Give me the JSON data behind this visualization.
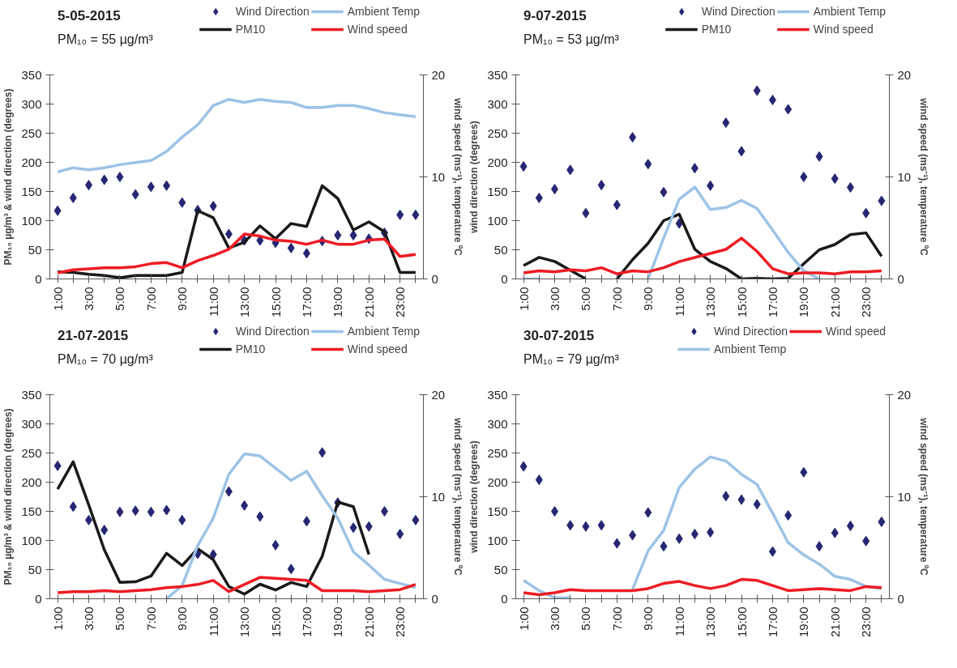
{
  "chart_data": [
    {
      "type": "line",
      "title": "5-05-2015",
      "subtitle": "PM₁₀ = 55 µg/m³",
      "ylabel": "PM₁₀ µg/m³ & wind direction\n(degrees)",
      "y2label": "wind speed (ms⁻¹),\ntemperature ºC",
      "categories": [
        "1:00",
        null,
        "3:00",
        null,
        "5:00",
        null,
        "7:00",
        null,
        "9:00",
        null,
        "11:00",
        null,
        "13:00",
        null,
        "15:00",
        null,
        "17:00",
        null,
        "19:00",
        null,
        "21:00",
        null,
        "23:00",
        null
      ],
      "ylim": [
        0,
        350
      ],
      "yticks": [
        0,
        50,
        100,
        150,
        200,
        250,
        300,
        350
      ],
      "y2lim": [
        0,
        20
      ],
      "y2ticks": [
        0,
        10,
        20
      ],
      "legend": "top",
      "grid": false,
      "series": [
        {
          "name": "Wind Direction",
          "type": "scatter",
          "marker": "diamond",
          "color": "#262673",
          "values": [
            117,
            139,
            161,
            170,
            175,
            145,
            158,
            160,
            131,
            118,
            125,
            77,
            66,
            66,
            62,
            53,
            44,
            65,
            75,
            75,
            69,
            79,
            110,
            110
          ]
        },
        {
          "name": "PM10",
          "color": "#1a1a1a",
          "values": [
            12,
            11,
            8,
            6,
            2,
            6,
            6,
            6,
            11,
            117,
            105,
            53,
            63,
            91,
            69,
            95,
            90,
            160,
            138,
            84,
            98,
            81,
            11,
            11
          ]
        },
        {
          "name": "Ambient Temp",
          "type": "line",
          "axis": "y2",
          "color": "#9dc3e6",
          "values": [
            10.5,
            10.9,
            10.7,
            10.9,
            11.2,
            11.4,
            11.6,
            12.5,
            13.9,
            15.1,
            17.0,
            17.6,
            17.3,
            17.6,
            17.4,
            17.3,
            16.8,
            16.8,
            17.0,
            17.0,
            16.7,
            16.3,
            16.1,
            15.9
          ]
        },
        {
          "name": "Wind speed",
          "type": "line",
          "axis": "y2",
          "color": "#ed1c24",
          "values": [
            0.6,
            0.9,
            1.0,
            1.1,
            1.1,
            1.2,
            1.5,
            1.6,
            1.1,
            1.8,
            2.3,
            2.9,
            4.4,
            4.2,
            3.8,
            3.7,
            3.4,
            3.8,
            3.4,
            3.4,
            3.8,
            3.9,
            2.2,
            2.4
          ]
        }
      ]
    },
    {
      "type": "line",
      "title": "9-07-2015",
      "subtitle": "PM₁₀ = 53 µg/m³",
      "ylabel": "wind direction (degrees)",
      "y2label": "wind speed (ms⁻¹),\ntemperature ºC",
      "categories": [
        "1:00",
        null,
        "3:00",
        null,
        "5:00",
        null,
        "7:00",
        null,
        "9:00",
        null,
        "11:00",
        null,
        "13:00",
        null,
        "15:00",
        null,
        "17:00",
        null,
        "19:00",
        null,
        "21:00",
        null,
        "23:00",
        null
      ],
      "ylim": [
        0,
        350
      ],
      "yticks": [
        0,
        50,
        100,
        150,
        200,
        250,
        300,
        350
      ],
      "y2lim": [
        0,
        20
      ],
      "y2ticks": [
        0,
        10,
        20
      ],
      "legend": "top",
      "grid": false,
      "series": [
        {
          "name": "Wind Direction",
          "type": "scatter",
          "marker": "diamond",
          "color": "#262673",
          "values": [
            193,
            139,
            154,
            187,
            113,
            161,
            127,
            243,
            197,
            149,
            95,
            190,
            160,
            268,
            219,
            323,
            307,
            291,
            175,
            210,
            172,
            157,
            113,
            134
          ]
        },
        {
          "name": "PM10",
          "color": "#1a1a1a",
          "values": [
            23,
            37,
            30,
            15,
            0,
            null,
            0,
            33,
            61,
            100,
            111,
            51,
            30,
            18,
            0,
            1,
            0,
            1,
            26,
            50,
            59,
            76,
            79,
            39
          ]
        },
        {
          "name": "Ambient Temp",
          "type": "line",
          "axis": "y2",
          "color": "#9dc3e6",
          "values": [
            0,
            0,
            null,
            null,
            null,
            null,
            null,
            null,
            0,
            4.0,
            7.8,
            9.0,
            6.8,
            7.0,
            7.7,
            6.9,
            4.8,
            2.6,
            0.8,
            0,
            null,
            null,
            null,
            null
          ]
        },
        {
          "name": "Wind speed",
          "type": "line",
          "axis": "y2",
          "color": "#ed1c24",
          "values": [
            0.6,
            0.8,
            0.7,
            0.9,
            0.8,
            1.1,
            0.5,
            0.8,
            0.7,
            1.1,
            1.7,
            2.1,
            2.5,
            2.9,
            4.0,
            2.7,
            1.0,
            0.5,
            0.6,
            0.6,
            0.5,
            0.7,
            0.7,
            0.8
          ]
        }
      ]
    },
    {
      "type": "line",
      "title": "21-07-2015",
      "subtitle": "PM₁₀ = 70 µg/m³",
      "ylabel": "PM₁₀ µg/m³ & wind direction\n(degrees)",
      "y2label": "wind speed (ms⁻¹),\ntemperature ºC",
      "categories": [
        "1:00",
        null,
        "3:00",
        null,
        "5:00",
        null,
        "7:00",
        null,
        "9:00",
        null,
        "11:00",
        null,
        "13:00",
        null,
        "15:00",
        null,
        "17:00",
        null,
        "19:00",
        null,
        "21:00",
        null,
        "23:00",
        null
      ],
      "ylim": [
        0,
        350
      ],
      "yticks": [
        0,
        50,
        100,
        150,
        200,
        250,
        300,
        350
      ],
      "y2lim": [
        0,
        20
      ],
      "y2ticks": [
        0,
        10,
        20
      ],
      "legend": "top",
      "grid": false,
      "series": [
        {
          "name": "Wind Direction",
          "type": "scatter",
          "marker": "diamond",
          "color": "#262673",
          "values": [
            228,
            158,
            135,
            118,
            149,
            151,
            149,
            152,
            135,
            77,
            76,
            184,
            160,
            141,
            92,
            51,
            133,
            251,
            165,
            122,
            124,
            150,
            111,
            135
          ]
        },
        {
          "name": "PM10",
          "color": "#1a1a1a",
          "values": [
            188,
            235,
            161,
            84,
            28,
            29,
            39,
            78,
            57,
            86,
            67,
            21,
            8,
            25,
            15,
            28,
            21,
            73,
            166,
            158,
            76,
            null,
            null,
            null
          ]
        },
        {
          "name": "Ambient Temp",
          "type": "line",
          "axis": "y2",
          "color": "#9dc3e6",
          "values": [
            null,
            null,
            null,
            null,
            null,
            null,
            null,
            0,
            1.3,
            5.2,
            7.9,
            12.2,
            14.2,
            14.0,
            12.8,
            11.6,
            12.5,
            10.1,
            7.9,
            4.6,
            3.3,
            1.9,
            1.5,
            1.1
          ]
        },
        {
          "name": "Wind speed",
          "type": "line",
          "axis": "y2",
          "color": "#ed1c24",
          "values": [
            0.6,
            0.7,
            0.7,
            0.8,
            0.7,
            0.8,
            0.9,
            1.1,
            1.2,
            1.4,
            1.8,
            0.7,
            1.4,
            2.1,
            2.0,
            1.9,
            1.8,
            0.8,
            0.8,
            0.8,
            0.7,
            0.8,
            0.9,
            1.4
          ]
        }
      ]
    },
    {
      "type": "line",
      "title": "30-07-2015",
      "subtitle": "PM₁₀ = 79 µg/m³",
      "ylabel": "wind direction (degrees)",
      "y2label": "wind speed (ms⁻¹),\ntemperature ºC",
      "categories": [
        "1:00",
        null,
        "3:00",
        null,
        "5:00",
        null,
        "7:00",
        null,
        "9:00",
        null,
        "11:00",
        null,
        "13:00",
        null,
        "15:00",
        null,
        "17:00",
        null,
        "19:00",
        null,
        "21:00",
        null,
        "23:00",
        null
      ],
      "ylim": [
        0,
        350
      ],
      "yticks": [
        0,
        50,
        100,
        150,
        200,
        250,
        300,
        350
      ],
      "y2lim": [
        0,
        20
      ],
      "y2ticks": [
        0,
        10,
        20
      ],
      "legend": "top",
      "grid": false,
      "series": [
        {
          "name": "Wind Direction",
          "type": "scatter",
          "marker": "diamond",
          "color": "#262673",
          "values": [
            227,
            204,
            150,
            126,
            124,
            126,
            95,
            109,
            148,
            90,
            103,
            111,
            114,
            176,
            170,
            162,
            81,
            143,
            217,
            90,
            113,
            125,
            99,
            132
          ]
        },
        {
          "name": "Ambient Temp",
          "type": "line",
          "axis": "y2",
          "color": "#9dc3e6",
          "values": [
            1.8,
            0.8,
            0.1,
            0.1,
            null,
            null,
            null,
            0.9,
            4.7,
            6.7,
            10.9,
            12.7,
            13.9,
            13.5,
            12.2,
            11.2,
            8.4,
            5.5,
            4.3,
            3.4,
            2.2,
            1.9,
            1.2,
            1.0
          ]
        },
        {
          "name": "Wind speed",
          "type": "line",
          "axis": "y2",
          "color": "#ed1c24",
          "values": [
            0.6,
            0.4,
            0.6,
            0.9,
            0.8,
            0.8,
            0.8,
            0.8,
            1.0,
            1.5,
            1.7,
            1.3,
            1.0,
            1.3,
            1.9,
            1.8,
            1.3,
            0.8,
            0.9,
            1.0,
            0.9,
            0.8,
            1.2,
            1.1
          ]
        }
      ]
    }
  ]
}
